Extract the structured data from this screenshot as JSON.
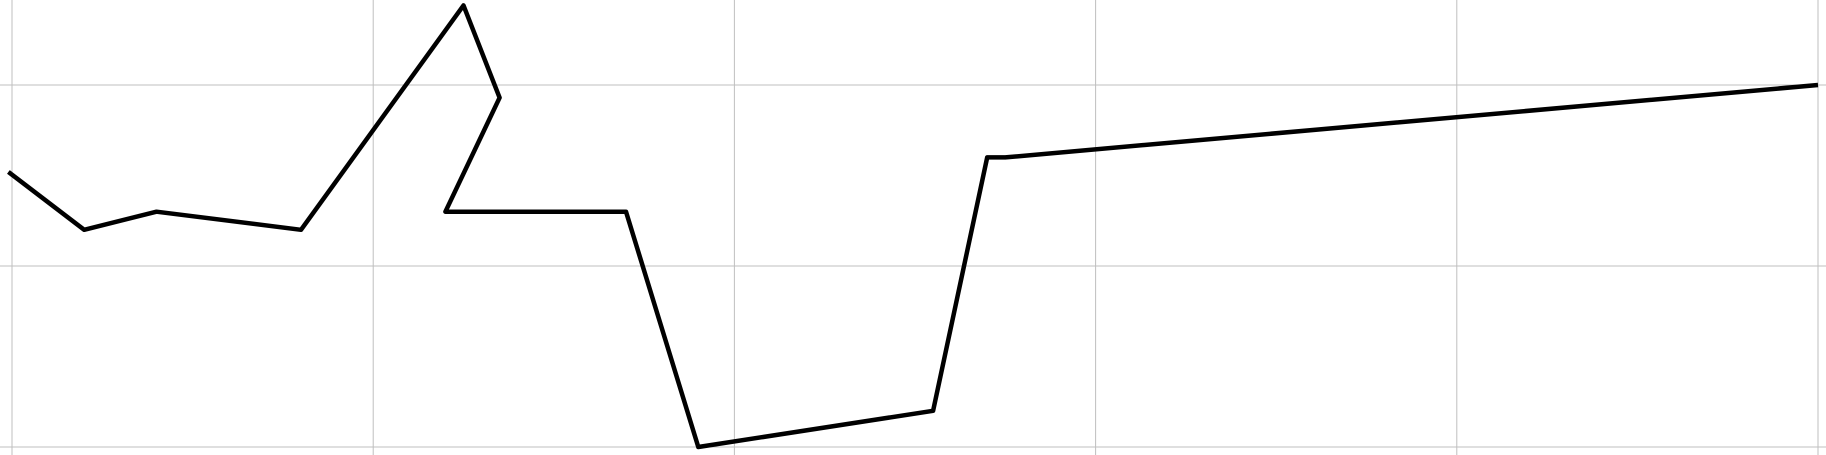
{
  "chart_data": {
    "type": "line",
    "title": "",
    "xlabel": "",
    "ylabel": "",
    "grid": true,
    "xlim": [
      -0.05,
      10
    ],
    "ylim": [
      -0.05,
      2.5
    ],
    "x_grid": [
      0,
      2,
      4,
      6,
      8,
      10
    ],
    "y_grid": [
      0,
      1,
      2
    ],
    "series": [
      {
        "values": [
          [
            -0.02,
            1.52
          ],
          [
            0.4,
            1.2
          ],
          [
            0.8,
            1.3
          ],
          [
            1.6,
            1.2
          ],
          [
            2.5,
            2.44
          ],
          [
            2.7,
            1.93
          ],
          [
            2.4,
            1.3
          ],
          [
            3.4,
            1.3
          ],
          [
            3.8,
            0.0
          ],
          [
            5.1,
            0.2
          ],
          [
            5.4,
            1.6
          ],
          [
            5.5,
            1.6
          ],
          [
            10.0,
            2.0
          ]
        ]
      }
    ],
    "colors": {
      "line": "#000000",
      "grid": "#bfbfbf"
    }
  }
}
